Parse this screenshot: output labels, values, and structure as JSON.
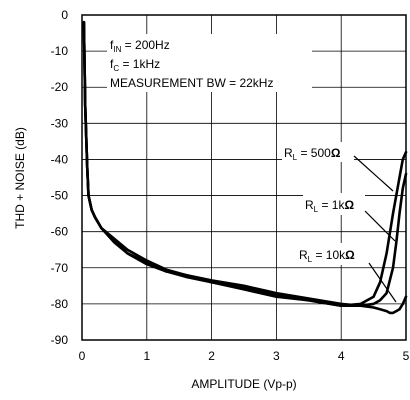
{
  "chart_data": {
    "type": "line",
    "xlabel": "AMPLITUDE (Vp-p)",
    "ylabel": "THD + NOISE (dB)",
    "xlim": [
      0,
      5
    ],
    "ylim": [
      -90,
      0
    ],
    "xticks": [
      "0",
      "1",
      "2",
      "3",
      "4",
      "5"
    ],
    "yticks": [
      "0",
      "-10",
      "-20",
      "-30",
      "-40",
      "-50",
      "-60",
      "-70",
      "-80",
      "-90"
    ],
    "grid": true,
    "conditions": {
      "line1": {
        "sym": "f",
        "sub": "IN",
        "rest": " = 200Hz"
      },
      "line2": {
        "sym": "f",
        "sub": "C",
        "rest": " = 1kHz"
      },
      "line3": "MEASUREMENT  BW = 22kHz"
    },
    "series_labels": [
      {
        "sym": "R",
        "sub": "L",
        "rest": " = 500",
        "unit": "Ω"
      },
      {
        "sym": "R",
        "sub": "L",
        "rest": " = 1k",
        "unit": "Ω"
      },
      {
        "sym": "R",
        "sub": "L",
        "rest": " = 10k",
        "unit": "Ω"
      }
    ],
    "series": [
      {
        "x": [
          0.03,
          0.05,
          0.08,
          0.1,
          0.15,
          0.2,
          0.3,
          0.5,
          0.7,
          1.0,
          1.3,
          1.6,
          2.0,
          2.5,
          3.0,
          3.5,
          4.0,
          4.3,
          4.5,
          4.6,
          4.7,
          4.8,
          4.9,
          4.95,
          5.0
        ],
        "y": [
          -2,
          -25,
          -42,
          -50,
          -54,
          -56,
          -59,
          -63,
          -66,
          -69,
          -71,
          -72,
          -74,
          -76,
          -78,
          -79,
          -80.5,
          -80,
          -78,
          -74,
          -66,
          -55,
          -45,
          -40,
          -38
        ]
      },
      {
        "x": [
          0.03,
          0.05,
          0.08,
          0.1,
          0.15,
          0.2,
          0.3,
          0.5,
          0.7,
          1.0,
          1.3,
          1.6,
          2.0,
          2.5,
          3.0,
          3.5,
          4.0,
          4.3,
          4.5,
          4.6,
          4.7,
          4.8,
          4.85,
          4.9,
          4.95,
          5.0
        ],
        "y": [
          -2,
          -25,
          -42,
          -50,
          -54,
          -56,
          -59,
          -62.5,
          -66,
          -68.5,
          -71,
          -72.5,
          -74,
          -75.5,
          -77.5,
          -79,
          -80.5,
          -80.5,
          -80,
          -79,
          -77,
          -70,
          -63,
          -55,
          -48,
          -44
        ]
      },
      {
        "x": [
          0.03,
          0.05,
          0.08,
          0.1,
          0.15,
          0.2,
          0.3,
          0.5,
          0.7,
          1.0,
          1.3,
          1.6,
          2.0,
          2.5,
          3.0,
          3.5,
          4.0,
          4.3,
          4.5,
          4.6,
          4.7,
          4.75,
          4.8,
          4.85,
          4.9,
          4.95,
          5.0
        ],
        "y": [
          -2,
          -25,
          -42,
          -50,
          -54,
          -56,
          -59,
          -62,
          -65,
          -68,
          -70.5,
          -72,
          -73.5,
          -75,
          -77,
          -78.5,
          -80,
          -80.5,
          -81,
          -81.5,
          -82,
          -82.5,
          -82.5,
          -82,
          -81.5,
          -80,
          -78
        ]
      }
    ]
  }
}
